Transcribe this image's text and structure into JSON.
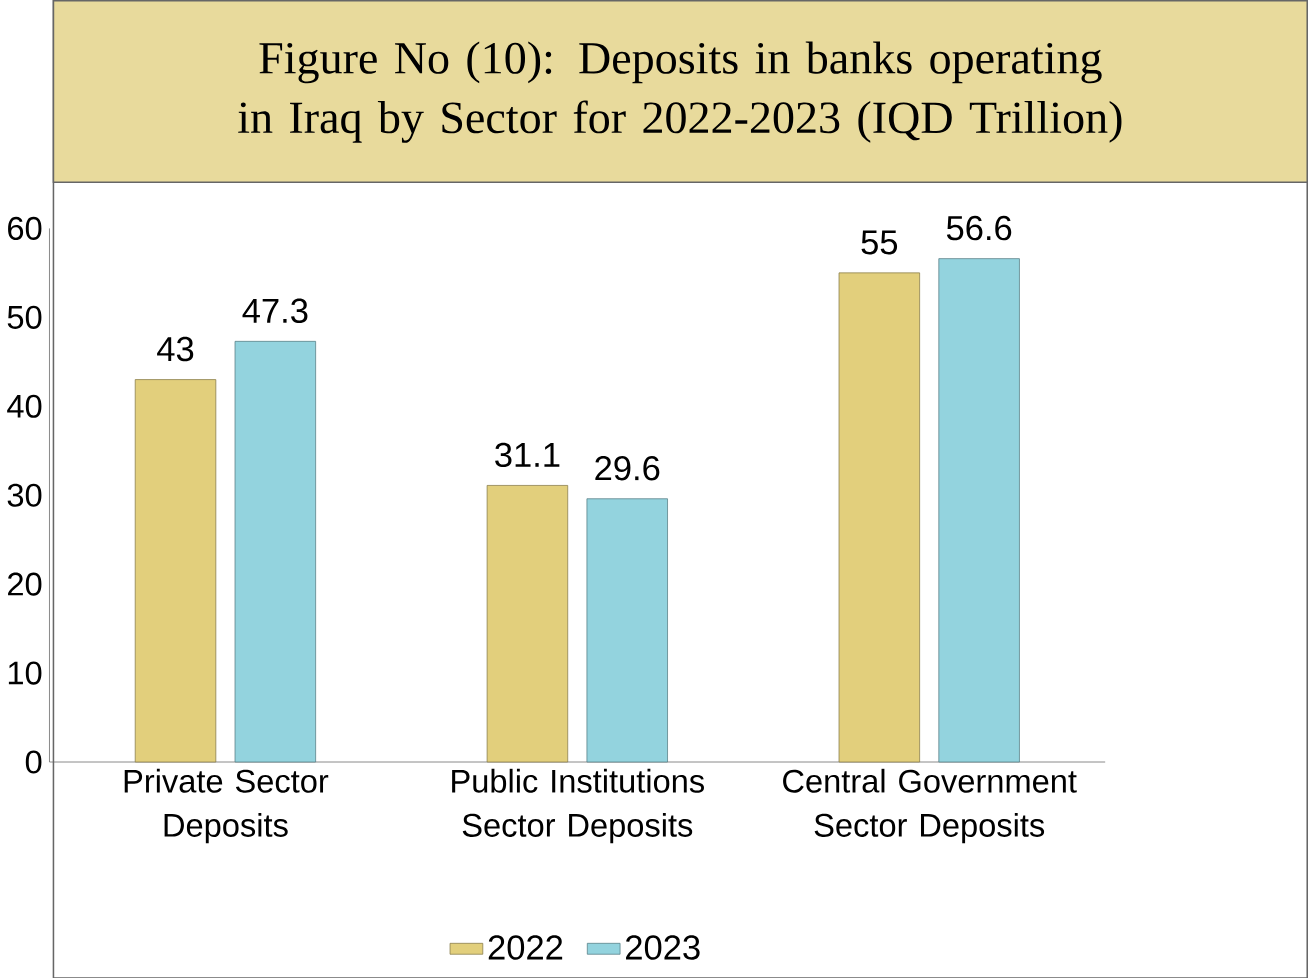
{
  "chart_data": {
    "type": "bar",
    "title": "Figure No (10): Deposits in banks operating in Iraq by Sector for 2022-2023 (IQD Trillion)",
    "categories": [
      "Private Sector Deposits",
      "Public Institutions Sector Deposits",
      "Central Government Sector Deposits"
    ],
    "series": [
      {
        "name": "2022",
        "color": "#e2cf7c",
        "values": [
          43,
          31.1,
          55
        ]
      },
      {
        "name": "2023",
        "color": "#93d3de",
        "values": [
          47.3,
          29.6,
          56.6
        ]
      }
    ],
    "ylim": [
      0,
      60
    ],
    "yticks": [
      0,
      10,
      20,
      30,
      40,
      50,
      60
    ],
    "data_labels": true,
    "legend": "bottom"
  }
}
